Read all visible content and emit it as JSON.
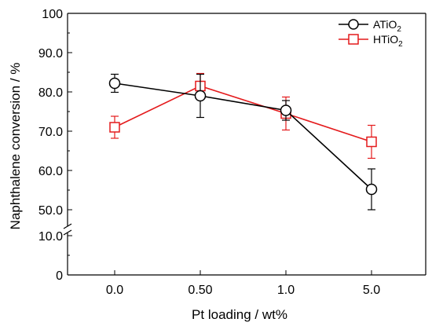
{
  "chart_data": {
    "type": "line",
    "title": "",
    "xlabel": "Pt loading / wt%",
    "ylabel": "Naphthalene conversion / %",
    "categories": [
      "0.0",
      "0.50",
      "1.0",
      "5.0"
    ],
    "y_ticks_upper": [
      "50.0",
      "60.0",
      "70.0",
      "80.0",
      "90.0",
      "100"
    ],
    "y_ticks_lower": [
      "0",
      "10.0"
    ],
    "y_break": [
      10,
      47
    ],
    "ylim": [
      0,
      100
    ],
    "grid": false,
    "legend_position": "top-right",
    "series": [
      {
        "name_base": "ATiO",
        "name_sub": "2",
        "color": "#000000",
        "marker": "circle",
        "values": [
          82.2,
          79.0,
          75.3,
          55.2
        ],
        "errors": [
          2.3,
          5.5,
          2.5,
          5.2
        ]
      },
      {
        "name_base": "HTiO",
        "name_sub": "2",
        "color": "#e41a1c",
        "marker": "square",
        "values": [
          71.0,
          81.5,
          74.5,
          67.3
        ],
        "errors": [
          2.8,
          3.2,
          4.2,
          4.2
        ]
      }
    ]
  }
}
